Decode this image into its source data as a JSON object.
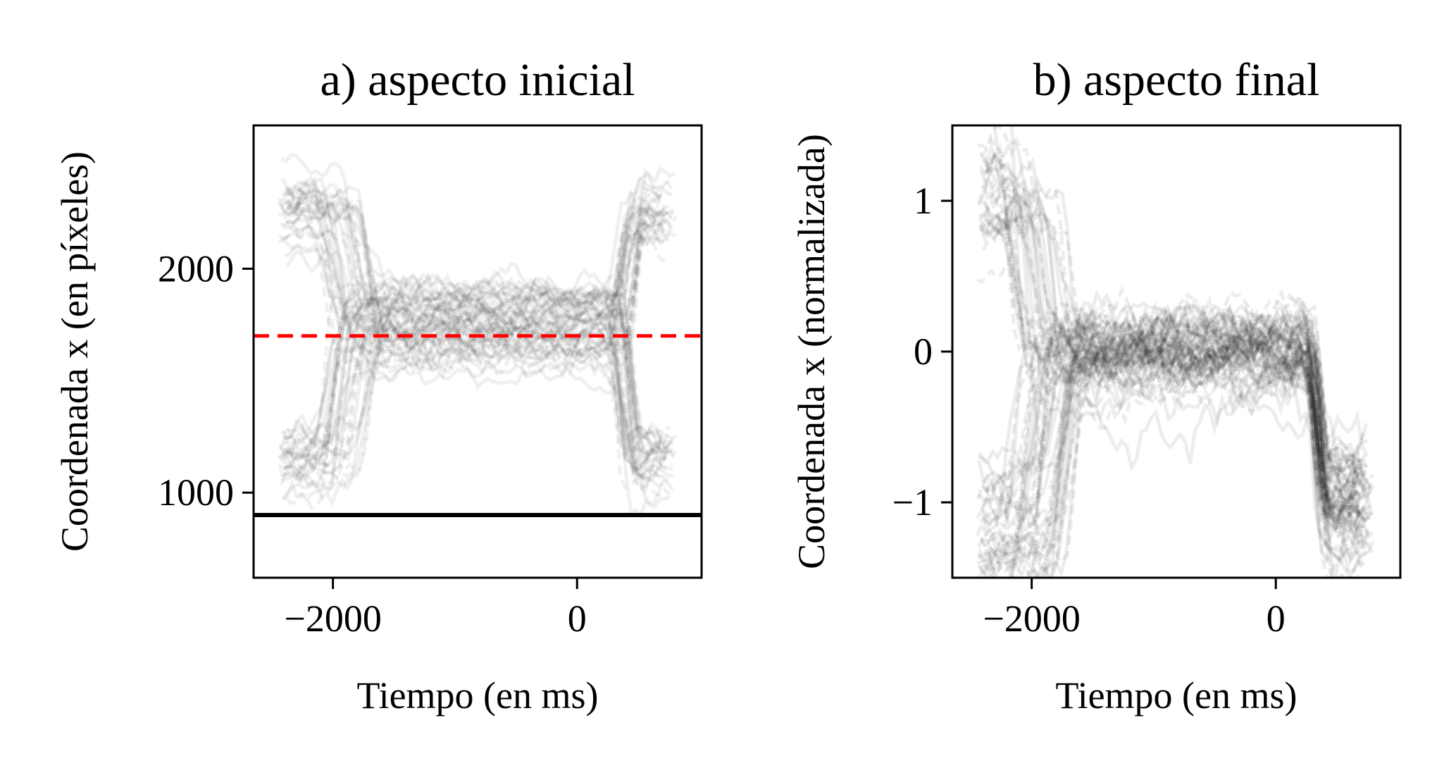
{
  "chart_data": [
    {
      "type": "line",
      "title": "a) aspecto inicial",
      "xlabel": "Tiempo (en ms)",
      "ylabel": "Coordenada x (en píxeles)",
      "xlim": [
        -2650,
        1020
      ],
      "ylim": [
        620,
        2640
      ],
      "x_ticks": [
        -2000,
        0
      ],
      "x_tick_labels": [
        "−2000",
        "0"
      ],
      "y_ticks": [
        1000,
        2000
      ],
      "y_tick_labels": [
        "1000",
        "2000"
      ],
      "grid": false,
      "series_color": "#000000",
      "series_opacity": 0.06,
      "trial_count": 60,
      "time_range": [
        -2450,
        820
      ],
      "trajectory_pattern": {
        "start_high_mean": 2280,
        "start_low_mean": 1150,
        "transition_to_center_ms": [
          -2100,
          -1650
        ],
        "center_mean": 1740,
        "center_spread": 180,
        "final_transition_ms": [
          300,
          500
        ],
        "final_high_mean": 2250,
        "final_low_mean": 1150
      },
      "reference_lines": [
        {
          "name": "",
          "y": 1700,
          "color": "#ff0000",
          "style": "dashed"
        },
        {
          "name": "",
          "y": 900,
          "color": "#000000",
          "style": "solid"
        }
      ]
    },
    {
      "type": "line",
      "title": "b) aspecto final",
      "xlabel": "Tiempo (en ms)",
      "ylabel": "Coordenada x (normalizada)",
      "xlim": [
        -2650,
        1020
      ],
      "ylim": [
        -1.5,
        1.5
      ],
      "x_ticks": [
        -2000,
        0
      ],
      "x_tick_labels": [
        "−2000",
        "0"
      ],
      "y_ticks": [
        -1,
        0,
        1
      ],
      "y_tick_labels": [
        "−1",
        "0",
        "1"
      ],
      "grid": false,
      "series_color": "#000000",
      "series_opacity": 0.07,
      "trial_count": 70,
      "time_range": [
        -2450,
        820
      ],
      "trajectory_pattern": {
        "start_high_mean": 1.1,
        "start_low_mean": -1.2,
        "transition_to_center_ms": [
          -2200,
          -1650
        ],
        "center_mean": 0.0,
        "center_spread": 0.2,
        "final_transition_ms": [
          300,
          400
        ],
        "final_mean": -1.0
      },
      "reference_lines": []
    }
  ]
}
